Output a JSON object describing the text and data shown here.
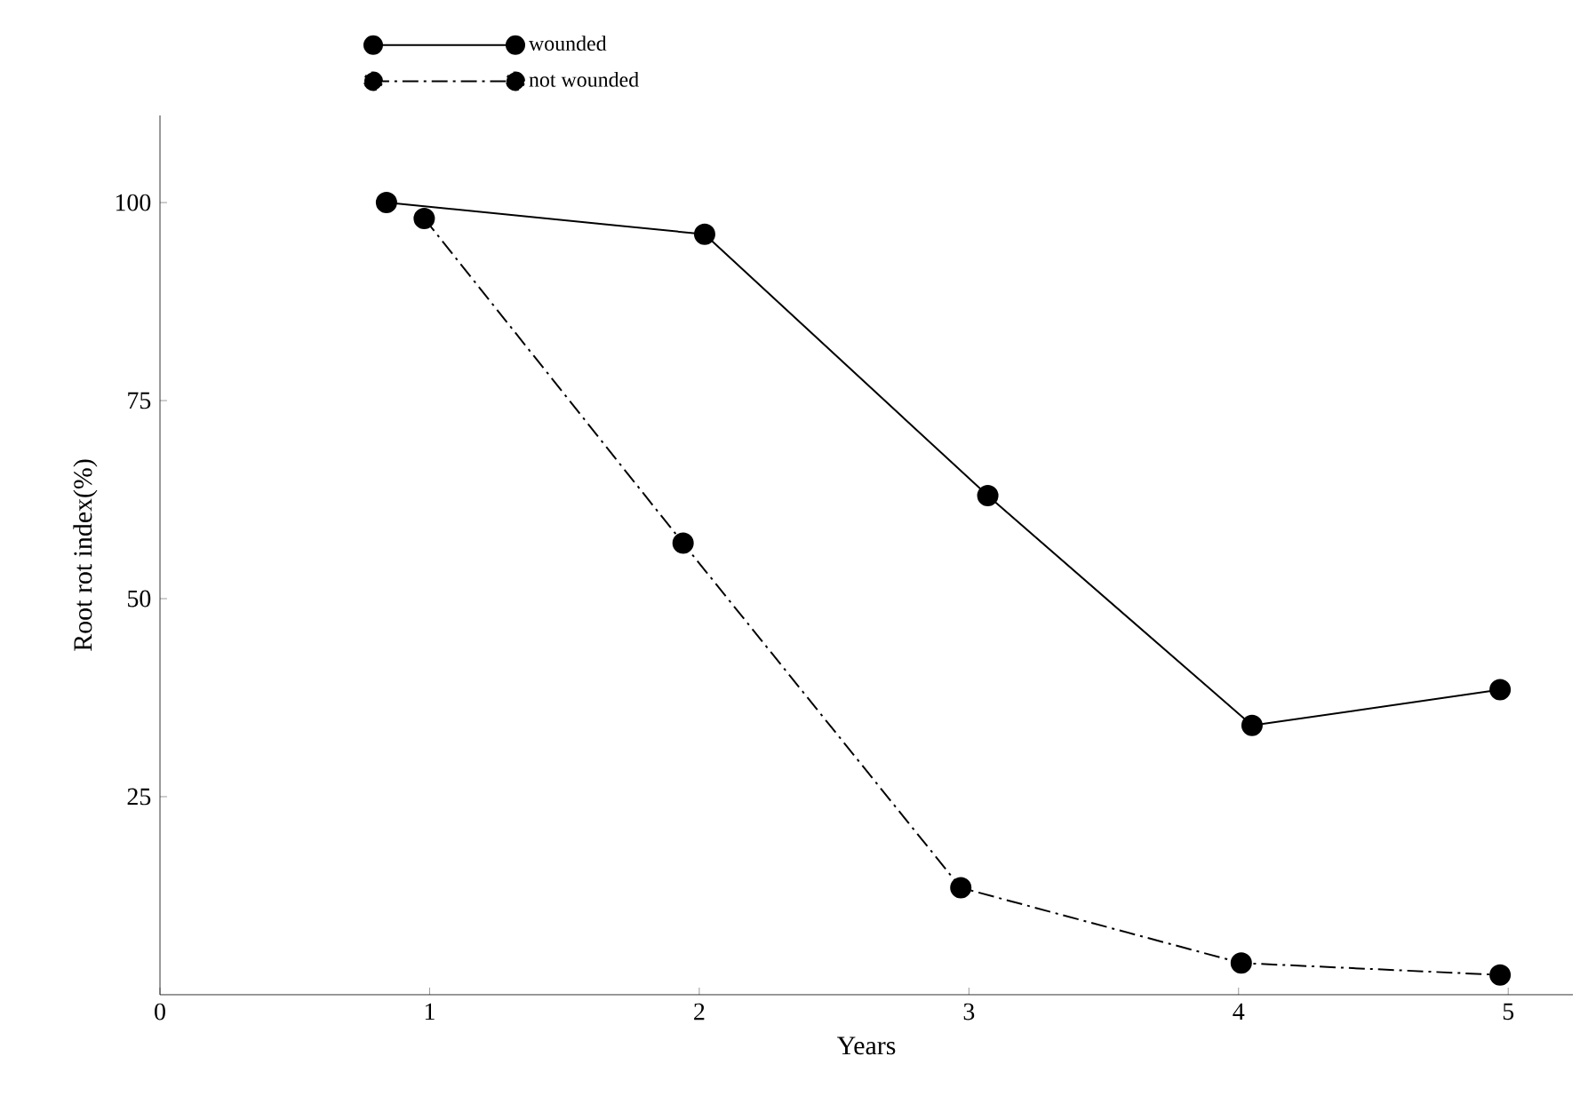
{
  "chart_data": {
    "type": "line",
    "xlabel": "Years",
    "ylabel": "Root rot index(%)",
    "xlim": [
      0,
      5.24
    ],
    "ylim": [
      0,
      111
    ],
    "xticks": [
      0,
      1,
      2,
      3,
      4,
      5
    ],
    "yticks": [
      25,
      50,
      75,
      100
    ],
    "grid": false,
    "legend": "top left",
    "marker": "circle",
    "series": [
      {
        "name": "wounded",
        "color": "#000000",
        "line_style": "solid",
        "x": [
          0.84,
          2.02,
          3.07,
          4.05,
          4.97
        ],
        "values": [
          100,
          96,
          63,
          34,
          38.5
        ]
      },
      {
        "name": "not wounded",
        "color": "#000000",
        "line_style": "dashdot",
        "x": [
          0.98,
          1.94,
          2.97,
          4.01,
          4.97
        ],
        "values": [
          98,
          57,
          13.5,
          4,
          2.5
        ]
      }
    ]
  }
}
